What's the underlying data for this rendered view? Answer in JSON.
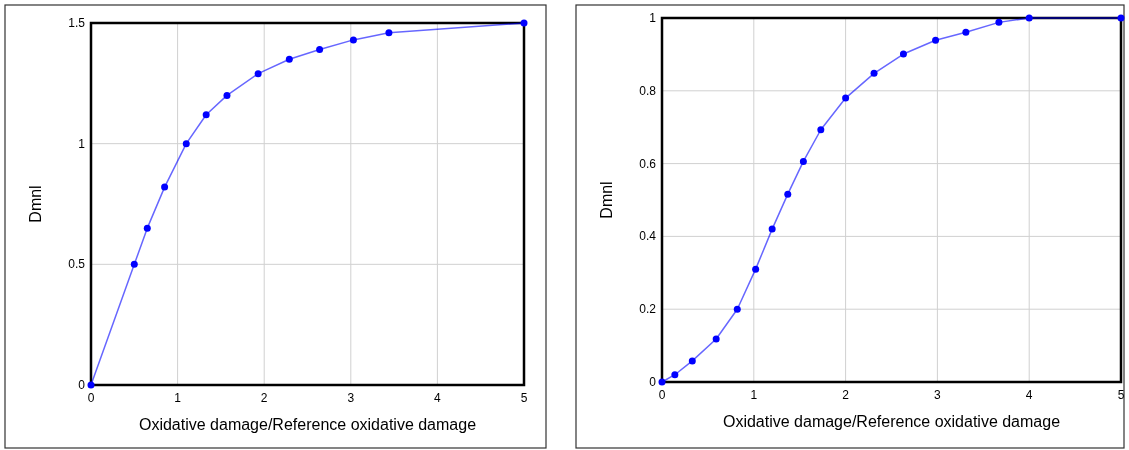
{
  "chart_data": [
    {
      "type": "line",
      "xlabel": "Oxidative damage/Reference oxidative damage",
      "ylabel": "Dmnl",
      "xlim": [
        0,
        5
      ],
      "ylim": [
        0,
        1.5
      ],
      "xticks": [
        0,
        1,
        2,
        3,
        4,
        5
      ],
      "yticks": [
        0,
        0.5,
        1,
        1.5
      ],
      "grid": true,
      "marker": "circle",
      "series": [
        {
          "color": "#0000ff",
          "x": [
            0,
            0.5,
            0.65,
            0.85,
            1.1,
            1.33,
            1.57,
            1.93,
            2.29,
            2.64,
            3.03,
            3.44,
            5
          ],
          "values": [
            0,
            0.5,
            0.65,
            0.82,
            1.0,
            1.12,
            1.2,
            1.29,
            1.35,
            1.39,
            1.43,
            1.46,
            1.5
          ]
        }
      ]
    },
    {
      "type": "line",
      "xlabel": "Oxidative damage/Reference oxidative damage",
      "ylabel": "Dmnl",
      "xlim": [
        0,
        5
      ],
      "ylim": [
        0,
        1
      ],
      "xticks": [
        0,
        1,
        2,
        3,
        4,
        5
      ],
      "yticks": [
        0,
        0.2,
        0.4,
        0.6,
        0.8,
        1
      ],
      "grid": true,
      "marker": "circle",
      "series": [
        {
          "color": "#0000ff",
          "x": [
            0,
            0.14,
            0.33,
            0.59,
            0.82,
            1.02,
            1.2,
            1.37,
            1.54,
            1.73,
            2.0,
            2.31,
            2.63,
            2.98,
            3.31,
            3.67,
            4,
            5
          ],
          "values": [
            0,
            0.02,
            0.058,
            0.118,
            0.2,
            0.31,
            0.42,
            0.516,
            0.606,
            0.693,
            0.78,
            0.848,
            0.901,
            0.939,
            0.961,
            0.988,
            1,
            1
          ]
        }
      ]
    }
  ]
}
